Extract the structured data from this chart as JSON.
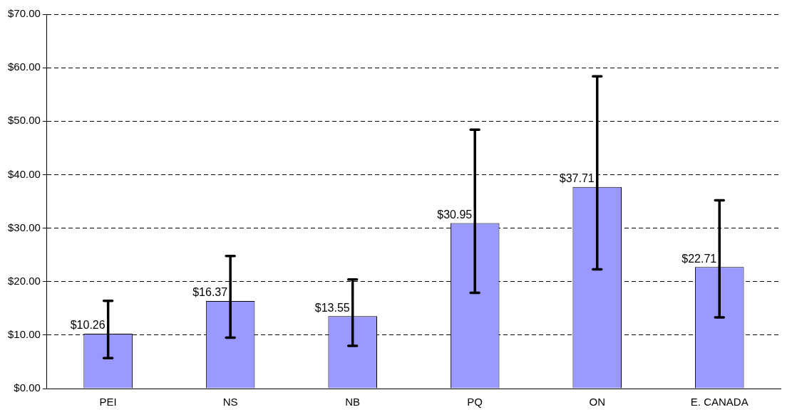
{
  "chart_data": {
    "type": "bar",
    "categories": [
      "PEI",
      "NS",
      "NB",
      "PQ",
      "ON",
      "E. CANADA"
    ],
    "values": [
      10.26,
      16.37,
      13.55,
      30.95,
      37.71,
      22.71
    ],
    "errors": [
      [
        5.7,
        16.4
      ],
      [
        9.5,
        24.8
      ],
      [
        8.0,
        20.4
      ],
      [
        17.9,
        48.4
      ],
      [
        22.3,
        58.4
      ],
      [
        13.3,
        35.2
      ]
    ],
    "value_labels": [
      "$10.26",
      "$16.37",
      "$13.55",
      "$30.95",
      "$37.71",
      "$22.71"
    ],
    "color": "#9999ff",
    "ylim": [
      0,
      70
    ],
    "yticks": [
      {
        "value": 0,
        "label": "$0.00"
      },
      {
        "value": 10,
        "label": "$10.00"
      },
      {
        "value": 20,
        "label": "$20.00"
      },
      {
        "value": 30,
        "label": "$30.00"
      },
      {
        "value": 40,
        "label": "$40.00"
      },
      {
        "value": 50,
        "label": "$50.00"
      },
      {
        "value": 60,
        "label": "$60.00"
      },
      {
        "value": 70,
        "label": "$70.00"
      }
    ],
    "grid": "y",
    "legend": false
  }
}
